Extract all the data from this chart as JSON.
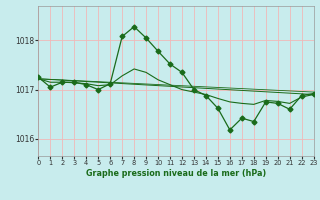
{
  "title": "Graphe pression niveau de la mer (hPa)",
  "bg_color": "#c8eced",
  "grid_color": "#f0b8b8",
  "line_color": "#1a6b1a",
  "x_min": 0,
  "x_max": 23,
  "y_min": 1015.65,
  "y_max": 1018.7,
  "yticks": [
    1016,
    1017,
    1018
  ],
  "xticks": [
    0,
    1,
    2,
    3,
    4,
    5,
    6,
    7,
    8,
    9,
    10,
    11,
    12,
    13,
    14,
    15,
    16,
    17,
    18,
    19,
    20,
    21,
    22,
    23
  ],
  "series1_x": [
    0,
    1,
    2,
    3,
    4,
    5,
    6,
    7,
    8,
    9,
    10,
    11,
    12,
    13,
    14,
    15,
    16,
    17,
    18,
    19,
    20,
    21,
    22,
    23
  ],
  "series1_y": [
    1017.25,
    1017.05,
    1017.15,
    1017.15,
    1017.1,
    1017.0,
    1017.12,
    1018.08,
    1018.28,
    1018.05,
    1017.78,
    1017.52,
    1017.35,
    1017.0,
    1016.88,
    1016.62,
    1016.18,
    1016.42,
    1016.35,
    1016.75,
    1016.72,
    1016.6,
    1016.88,
    1016.92
  ],
  "series2_x": [
    0,
    1,
    2,
    3,
    4,
    5,
    6,
    7,
    8,
    9,
    10,
    11,
    12,
    13,
    14,
    15,
    16,
    17,
    18,
    19,
    20,
    21,
    22,
    23
  ],
  "series2_y": [
    1017.22,
    1017.15,
    1017.15,
    1017.14,
    1017.12,
    1017.08,
    1017.1,
    1017.28,
    1017.42,
    1017.35,
    1017.2,
    1017.1,
    1017.0,
    1016.95,
    1016.9,
    1016.82,
    1016.75,
    1016.72,
    1016.7,
    1016.78,
    1016.76,
    1016.72,
    1016.85,
    1016.9
  ],
  "series3_x": [
    0,
    23
  ],
  "series3_y": [
    1017.22,
    1016.9
  ],
  "series4_x": [
    0,
    23
  ],
  "series4_y": [
    1017.22,
    1016.95
  ],
  "marker": "D",
  "markersize": 2.5,
  "lw_main": 0.9,
  "lw_smooth": 0.8,
  "lw_trend": 0.7
}
